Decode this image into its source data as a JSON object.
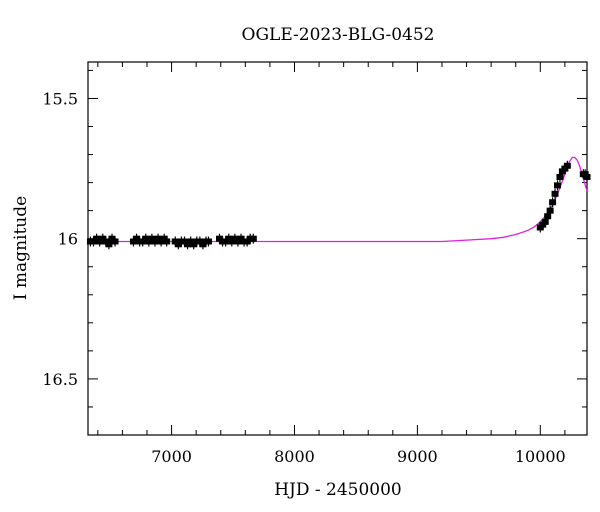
{
  "chart_data": {
    "type": "scatter",
    "title": "OGLE-2023-BLG-0452",
    "xlabel": "HJD - 2450000",
    "ylabel": "I magnitude",
    "xlim": [
      6320,
      10380
    ],
    "ylim": [
      16.7,
      15.37
    ],
    "y_inverted": true,
    "grid": false,
    "x_ticks": [
      7000,
      8000,
      9000,
      10000
    ],
    "x_tick_labels": [
      "7000",
      "8000",
      "9000",
      "10000"
    ],
    "y_ticks": [
      15.5,
      16,
      16.5
    ],
    "y_tick_labels": [
      "15.5",
      "16",
      "16.5"
    ],
    "series": [
      {
        "kind": "points",
        "color": "#000000",
        "marker": "square-errorbar",
        "x": [
          6340,
          6365,
          6390,
          6415,
          6440,
          6465,
          6490,
          6515,
          6540,
          6690,
          6715,
          6740,
          6765,
          6790,
          6815,
          6840,
          6865,
          6890,
          6915,
          6940,
          6960,
          7030,
          7055,
          7080,
          7105,
          7130,
          7155,
          7180,
          7205,
          7230,
          7255,
          7280,
          7300,
          7390,
          7415,
          7440,
          7465,
          7490,
          7515,
          7540,
          7565,
          7590,
          7615,
          7640,
          7665,
          10000,
          10020,
          10040,
          10060,
          10080,
          10100,
          10120,
          10140,
          10160,
          10180,
          10200,
          10220,
          10350,
          10365,
          10380
        ],
        "y": [
          16.01,
          16.01,
          16.0,
          16.01,
          16.0,
          16.01,
          16.02,
          16.0,
          16.01,
          16.01,
          16.0,
          16.01,
          16.01,
          16.0,
          16.01,
          16.0,
          16.01,
          16.0,
          16.01,
          16.0,
          16.01,
          16.01,
          16.02,
          16.01,
          16.01,
          16.02,
          16.01,
          16.02,
          16.01,
          16.01,
          16.02,
          16.01,
          16.01,
          16.0,
          16.01,
          16.01,
          16.0,
          16.01,
          16.0,
          16.01,
          16.0,
          16.01,
          16.01,
          16.0,
          16.0,
          15.96,
          15.95,
          15.94,
          15.92,
          15.9,
          15.87,
          15.84,
          15.81,
          15.78,
          15.76,
          15.75,
          15.74,
          15.77,
          15.77,
          15.78
        ]
      },
      {
        "kind": "model-curve",
        "color": "#e020e0",
        "x": [
          6320,
          6800,
          7300,
          7800,
          8300,
          8800,
          9200,
          9400,
          9600,
          9700,
          9800,
          9850,
          9900,
          9950,
          10000,
          10050,
          10100,
          10150,
          10200,
          10230,
          10260,
          10280,
          10300,
          10320,
          10340,
          10360,
          10380
        ],
        "y": [
          16.01,
          16.01,
          16.01,
          16.01,
          16.01,
          16.01,
          16.01,
          16.005,
          16.0,
          15.995,
          15.985,
          15.978,
          15.97,
          15.958,
          15.94,
          15.915,
          15.88,
          15.83,
          15.77,
          15.73,
          15.71,
          15.71,
          15.72,
          15.74,
          15.77,
          15.8,
          15.83
        ]
      }
    ]
  }
}
